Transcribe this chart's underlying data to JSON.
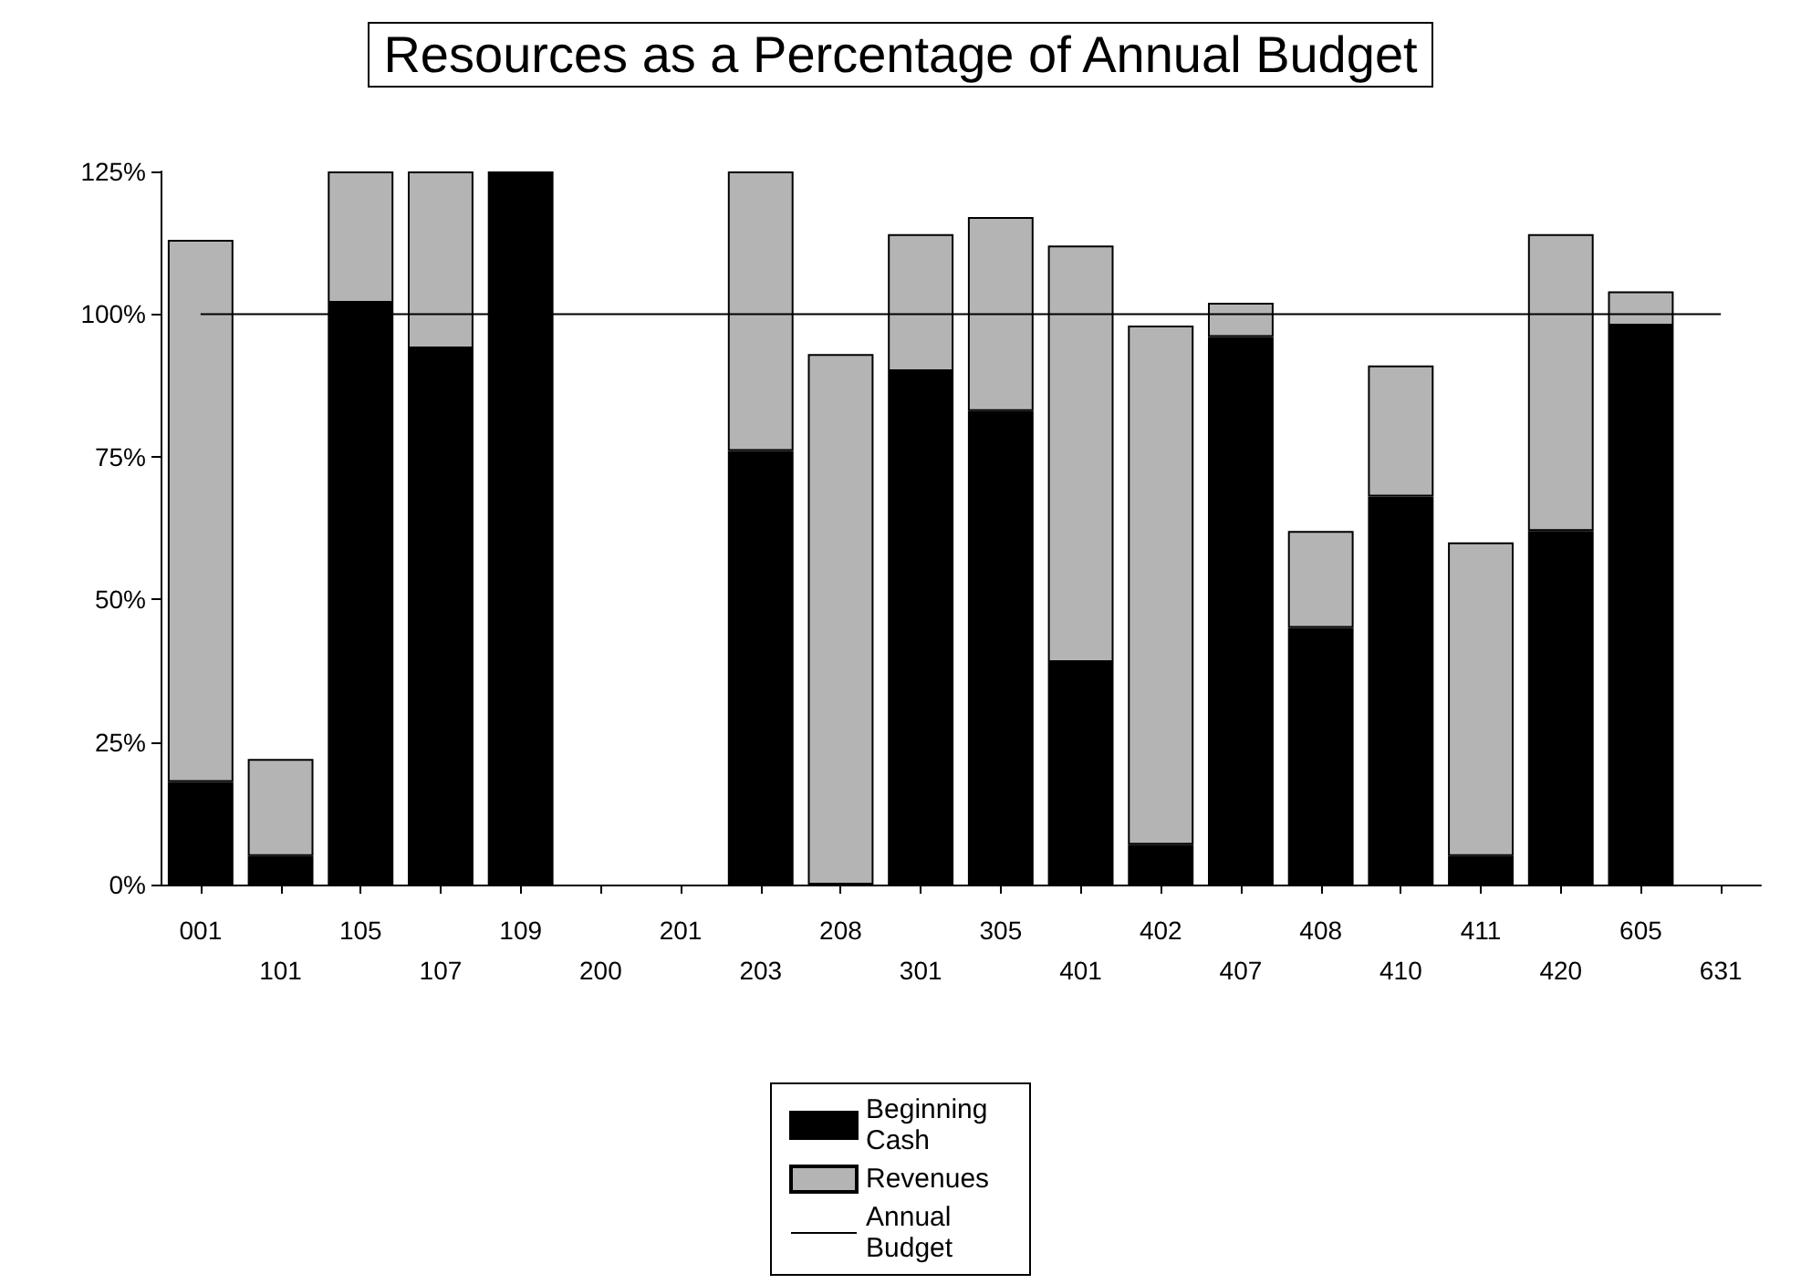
{
  "chart_data": {
    "type": "bar",
    "title": "Resources as a Percentage of Annual Budget",
    "stacked": true,
    "categories": [
      "001",
      "101",
      "105",
      "107",
      "109",
      "200",
      "201",
      "203",
      "208",
      "301",
      "305",
      "401",
      "402",
      "407",
      "408",
      "410",
      "411",
      "420",
      "605",
      "631"
    ],
    "series": [
      {
        "name": "Beginning Cash",
        "color": "#000000",
        "values": [
          18,
          5,
          102,
          94,
          125,
          null,
          null,
          76,
          null,
          90,
          83,
          39,
          7,
          96,
          45,
          68,
          5,
          62,
          98,
          null
        ]
      },
      {
        "name": "Revenues",
        "color": "#b4b4b4",
        "values": [
          95,
          17,
          23,
          31,
          null,
          null,
          null,
          49,
          93,
          24,
          34,
          73,
          91,
          6,
          17,
          23,
          55,
          52,
          6,
          null
        ]
      },
      {
        "name": "Annual Budget",
        "type": "line",
        "color": "#000000",
        "values": [
          100,
          100,
          100,
          100,
          100,
          100,
          100,
          100,
          100,
          100,
          100,
          100,
          100,
          100,
          100,
          100,
          100,
          100,
          100,
          100
        ]
      }
    ],
    "ylim": [
      0,
      125
    ],
    "yticks": [
      {
        "value": 0,
        "label": "0%"
      },
      {
        "value": 25,
        "label": "25%"
      },
      {
        "value": 50,
        "label": "50%"
      },
      {
        "value": 75,
        "label": "75%"
      },
      {
        "value": 100,
        "label": "100%"
      },
      {
        "value": 125,
        "label": "125%"
      }
    ],
    "grid": false,
    "legend": "bottom",
    "marker": "none",
    "line_style": "solid"
  }
}
